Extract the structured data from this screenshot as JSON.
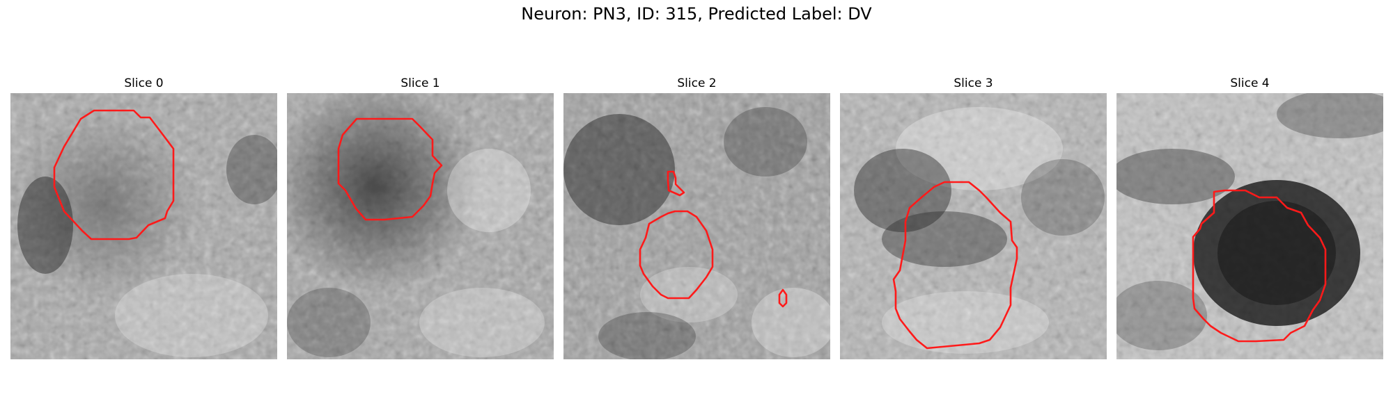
{
  "figure": {
    "title": "Neuron: PN3, ID: 315, Predicted Label: DV",
    "neuron": "PN3",
    "id": 315,
    "predicted_label": "DV",
    "contour_color": "#ff1a1a"
  },
  "panels": [
    {
      "title": "Slice 0"
    },
    {
      "title": "Slice 1"
    },
    {
      "title": "Slice 2"
    },
    {
      "title": "Slice 3"
    },
    {
      "title": "Slice 4"
    }
  ]
}
